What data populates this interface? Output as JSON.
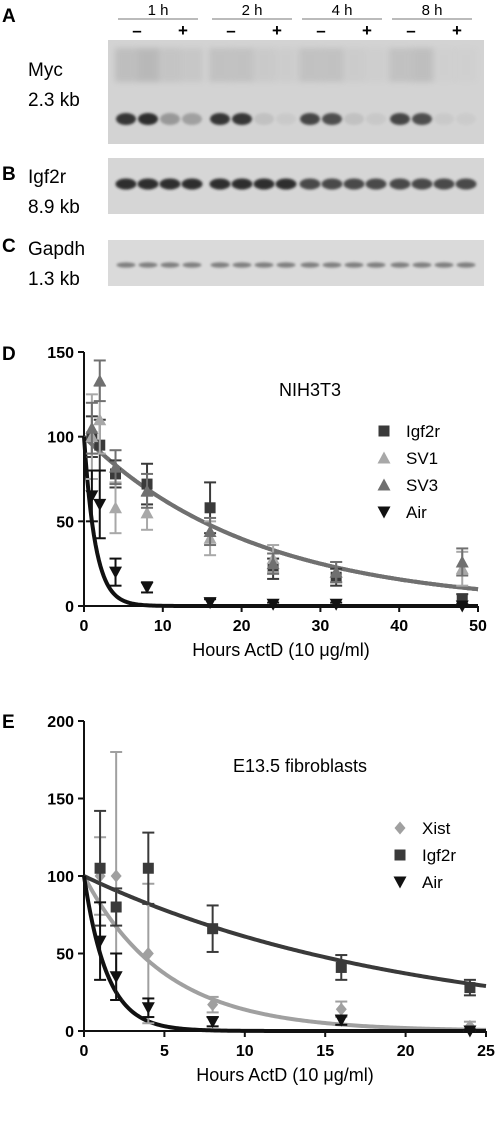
{
  "blots": {
    "panel_a": {
      "letter": "A",
      "gene": "Myc",
      "size": "2.3 kb",
      "timepoints": [
        "1 h",
        "2 h",
        "4 h",
        "8 h"
      ],
      "minus": "–",
      "plus": "+"
    },
    "panel_b": {
      "letter": "B",
      "gene": "Igf2r",
      "size": "8.9 kb"
    },
    "panel_c": {
      "letter": "C",
      "gene": "Gapdh",
      "size": "1.3 kb"
    }
  },
  "chart_data": [
    {
      "panel": "D",
      "type": "scatter",
      "title": "NIH3T3",
      "xlabel": "Hours ActD (10 μg/ml)",
      "ylabel": "",
      "xlim": [
        0,
        50
      ],
      "ylim": [
        0,
        150
      ],
      "xticks": [
        0,
        10,
        20,
        30,
        40,
        50
      ],
      "yticks": [
        0,
        50,
        100,
        150
      ],
      "legend_position": "top-right",
      "series": [
        {
          "name": "Igf2r",
          "marker": "square",
          "color": "#3a3a3a",
          "x": [
            1,
            2,
            4,
            8,
            16,
            24,
            32,
            48
          ],
          "y": [
            100,
            95,
            78,
            72,
            58,
            22,
            17,
            4
          ],
          "err": [
            12,
            15,
            8,
            12,
            15,
            6,
            5,
            3
          ],
          "half_life": 15
        },
        {
          "name": "SV1",
          "marker": "triangle-up",
          "color": "#a8a8a8",
          "x": [
            1,
            2,
            4,
            8,
            16,
            24,
            32,
            48
          ],
          "y": [
            100,
            110,
            58,
            55,
            40,
            28,
            20,
            22
          ],
          "err": [
            25,
            20,
            15,
            10,
            10,
            8,
            6,
            10
          ],
          "half_life": 15
        },
        {
          "name": "SV3",
          "marker": "triangle-up",
          "color": "#707070",
          "x": [
            1,
            2,
            4,
            8,
            16,
            24,
            32,
            48
          ],
          "y": [
            105,
            133,
            82,
            68,
            44,
            25,
            20,
            26
          ],
          "err": [
            15,
            12,
            10,
            10,
            8,
            6,
            6,
            8
          ],
          "half_life": 15
        },
        {
          "name": "Air",
          "marker": "triangle-down",
          "color": "#111111",
          "x": [
            1,
            2,
            4,
            8,
            16,
            24,
            32,
            48
          ],
          "y": [
            65,
            60,
            20,
            11,
            2,
            1,
            1,
            0
          ],
          "err": [
            15,
            20,
            8,
            3,
            2,
            1,
            1,
            1
          ],
          "half_life": 1.0
        }
      ]
    },
    {
      "panel": "E",
      "type": "scatter",
      "title": "E13.5 fibroblasts",
      "xlabel": "Hours ActD (10 μg/ml)",
      "ylabel": "",
      "xlim": [
        0,
        25
      ],
      "ylim": [
        0,
        200
      ],
      "xticks": [
        0,
        5,
        10,
        15,
        20,
        25
      ],
      "yticks": [
        0,
        50,
        100,
        150,
        200
      ],
      "legend_position": "right",
      "series": [
        {
          "name": "Xist",
          "marker": "diamond",
          "color": "#a0a0a0",
          "x": [
            1,
            2,
            4,
            8,
            16,
            24
          ],
          "y": [
            100,
            100,
            50,
            17,
            14,
            3
          ],
          "err": [
            25,
            80,
            45,
            5,
            5,
            3
          ],
          "half_life": 3.5
        },
        {
          "name": "Igf2r",
          "marker": "square",
          "color": "#3a3a3a",
          "x": [
            1,
            2,
            4,
            8,
            16,
            24
          ],
          "y": [
            105,
            80,
            105,
            66,
            41,
            28
          ],
          "err": [
            37,
            12,
            23,
            15,
            8,
            5
          ],
          "half_life": 14
        },
        {
          "name": "Air",
          "marker": "triangle-down",
          "color": "#111111",
          "x": [
            1,
            2,
            4,
            8,
            16,
            24
          ],
          "y": [
            58,
            35,
            15,
            6,
            7,
            0
          ],
          "err": [
            25,
            15,
            6,
            3,
            3,
            1
          ],
          "half_life": 1.0
        }
      ]
    }
  ]
}
